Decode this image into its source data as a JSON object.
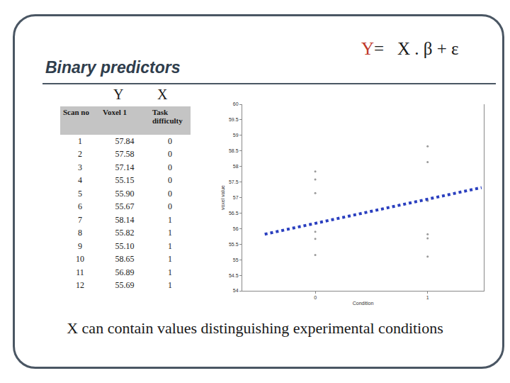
{
  "slide": {
    "title": "Binary predictors",
    "equation": {
      "lhs": "Y",
      "rhs": "=   X . β + ε"
    },
    "column_labels": [
      "Y",
      "X"
    ],
    "caption": "X can contain values distinguishing experimental conditions"
  },
  "table": {
    "header": [
      "Scan no",
      "Voxel 1",
      "Task difficulty"
    ],
    "rows": [
      [
        "1",
        "57.84",
        "0"
      ],
      [
        "2",
        "57.58",
        "0"
      ],
      [
        "3",
        "57.14",
        "0"
      ],
      [
        "4",
        "55.15",
        "0"
      ],
      [
        "5",
        "55.90",
        "0"
      ],
      [
        "6",
        "55.67",
        "0"
      ],
      [
        "7",
        "58.14",
        "1"
      ],
      [
        "8",
        "55.82",
        "1"
      ],
      [
        "9",
        "55.10",
        "1"
      ],
      [
        "10",
        "58.65",
        "1"
      ],
      [
        "11",
        "56.89",
        "1"
      ],
      [
        "12",
        "55.69",
        "1"
      ]
    ]
  },
  "chart_data": {
    "type": "scatter",
    "x_label": "Condition",
    "y_label": "voxel value",
    "xlim": [
      -0.65,
      1.5
    ],
    "xticks": [
      0,
      1
    ],
    "ylim": [
      54,
      60
    ],
    "yticks": [
      54,
      54.5,
      55,
      55.5,
      56,
      56.5,
      57,
      57.5,
      58,
      58.5,
      59,
      59.5,
      60
    ],
    "grid": false,
    "series": [
      {
        "type": "scatter",
        "marker": "dot",
        "color": "#9a9a9a",
        "x": [
          0,
          0,
          0,
          0,
          0,
          0,
          1,
          1,
          1,
          1,
          1,
          1
        ],
        "values": [
          57.84,
          57.58,
          57.14,
          55.15,
          55.9,
          55.67,
          58.14,
          55.82,
          55.1,
          58.65,
          56.89,
          55.69
        ]
      },
      {
        "type": "line",
        "line_style": "dotted",
        "color": "#2a3fbf",
        "x": [
          -0.45,
          1.48
        ],
        "values": [
          55.82,
          57.32
        ]
      }
    ]
  }
}
